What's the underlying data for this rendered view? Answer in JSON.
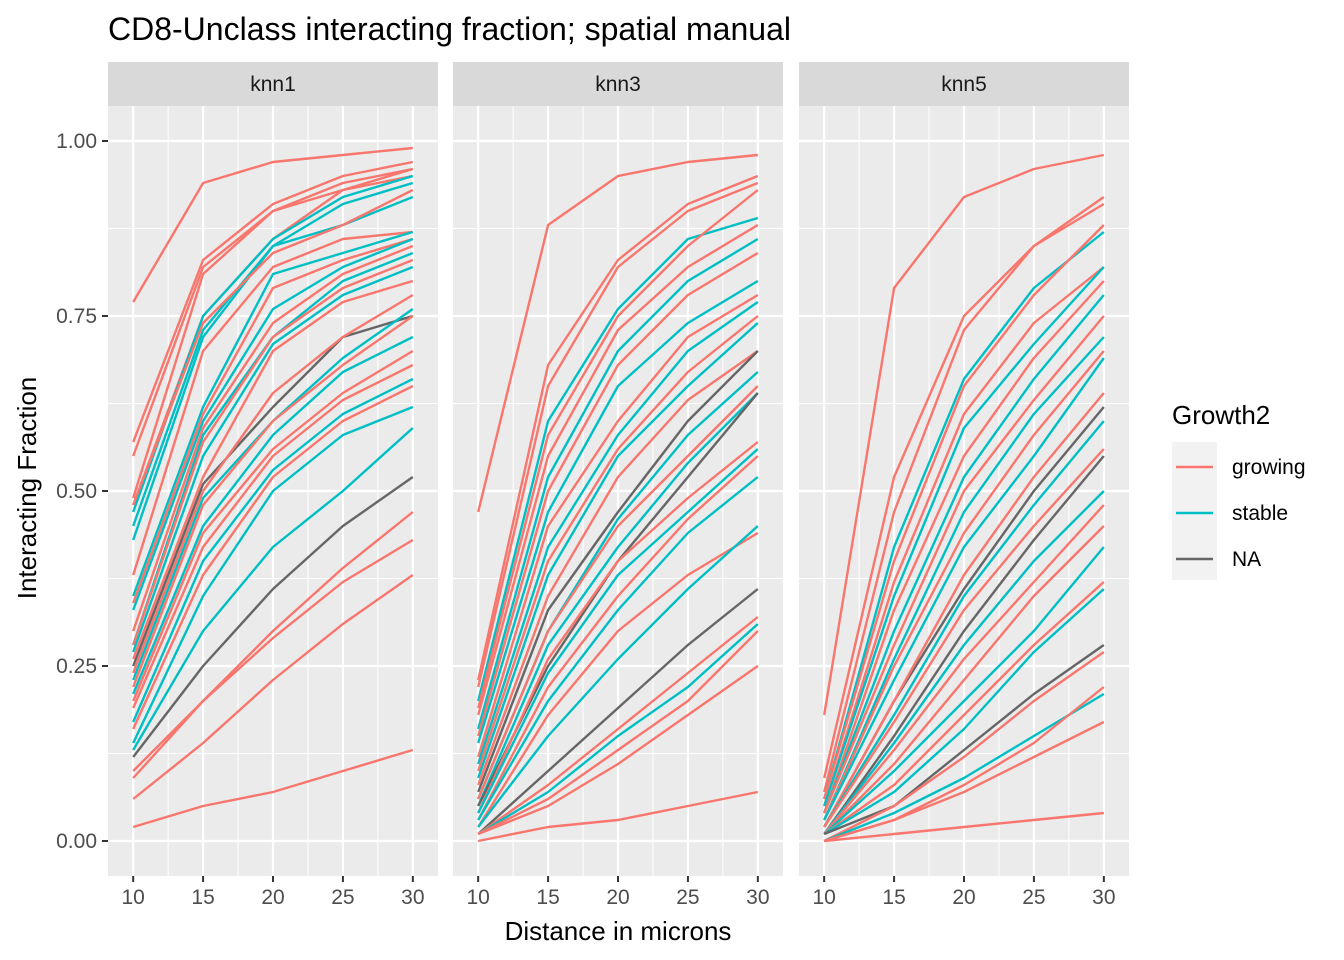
{
  "chart_data": {
    "type": "line",
    "title": "CD8-Unclass interacting fraction; spatial manual",
    "xlabel": "Distance in microns",
    "ylabel": "Interacting Fraction",
    "x": [
      10,
      15,
      20,
      25,
      30
    ],
    "xticks": [
      "10",
      "15",
      "20",
      "25",
      "30"
    ],
    "yticks": [
      "0.00",
      "0.25",
      "0.50",
      "0.75",
      "1.00"
    ],
    "xlim": [
      8.2,
      31.8
    ],
    "ylim": [
      -0.05,
      1.05
    ],
    "grid": true,
    "legend": {
      "title": "Growth2",
      "position": "right",
      "entries": [
        {
          "label": "growing",
          "color": "#F8766D"
        },
        {
          "label": "stable",
          "color": "#00BFC4"
        },
        {
          "label": "NA",
          "color": "#666666"
        }
      ]
    },
    "colors": {
      "growing": "#F8766D",
      "stable": "#00BFC4",
      "NA": "#666666",
      "panel_bg": "#EBEBEB",
      "strip_bg": "#D9D9D9",
      "grid": "#FFFFFF"
    },
    "panels": [
      {
        "label": "knn1",
        "lines": [
          {
            "group": "growing",
            "values": [
              0.77,
              0.94,
              0.97,
              0.98,
              0.99
            ]
          },
          {
            "group": "growing",
            "values": [
              0.57,
              0.83,
              0.91,
              0.95,
              0.97
            ]
          },
          {
            "group": "growing",
            "values": [
              0.55,
              0.82,
              0.9,
              0.94,
              0.96
            ]
          },
          {
            "group": "growing",
            "values": [
              0.49,
              0.81,
              0.9,
              0.93,
              0.96
            ]
          },
          {
            "group": "growing",
            "values": [
              0.48,
              0.75,
              0.86,
              0.93,
              0.95
            ]
          },
          {
            "group": "stable",
            "values": [
              0.47,
              0.75,
              0.86,
              0.92,
              0.95
            ]
          },
          {
            "group": "stable",
            "values": [
              0.45,
              0.73,
              0.85,
              0.91,
              0.94
            ]
          },
          {
            "group": "stable",
            "values": [
              0.43,
              0.72,
              0.85,
              0.88,
              0.92
            ]
          },
          {
            "group": "growing",
            "values": [
              0.48,
              0.74,
              0.84,
              0.88,
              0.93
            ]
          },
          {
            "group": "growing",
            "values": [
              0.38,
              0.7,
              0.82,
              0.86,
              0.87
            ]
          },
          {
            "group": "stable",
            "values": [
              0.35,
              0.62,
              0.81,
              0.84,
              0.87
            ]
          },
          {
            "group": "growing",
            "values": [
              0.34,
              0.61,
              0.79,
              0.83,
              0.86
            ]
          },
          {
            "group": "stable",
            "values": [
              0.33,
              0.6,
              0.76,
              0.82,
              0.86
            ]
          },
          {
            "group": "growing",
            "values": [
              0.3,
              0.59,
              0.74,
              0.81,
              0.85
            ]
          },
          {
            "group": "stable",
            "values": [
              0.28,
              0.58,
              0.72,
              0.8,
              0.84
            ]
          },
          {
            "group": "growing",
            "values": [
              0.28,
              0.57,
              0.72,
              0.79,
              0.83
            ]
          },
          {
            "group": "stable",
            "values": [
              0.27,
              0.55,
              0.71,
              0.78,
              0.82
            ]
          },
          {
            "group": "growing",
            "values": [
              0.26,
              0.52,
              0.7,
              0.77,
              0.8
            ]
          },
          {
            "group": "NA",
            "values": [
              0.25,
              0.51,
              0.62,
              0.72,
              0.75
            ]
          },
          {
            "group": "growing",
            "values": [
              0.24,
              0.5,
              0.64,
              0.72,
              0.78
            ]
          },
          {
            "group": "stable",
            "values": [
              0.23,
              0.49,
              0.6,
              0.69,
              0.76
            ]
          },
          {
            "group": "growing",
            "values": [
              0.22,
              0.48,
              0.6,
              0.68,
              0.75
            ]
          },
          {
            "group": "stable",
            "values": [
              0.21,
              0.45,
              0.58,
              0.67,
              0.72
            ]
          },
          {
            "group": "growing",
            "values": [
              0.2,
              0.44,
              0.56,
              0.64,
              0.7
            ]
          },
          {
            "group": "growing",
            "values": [
              0.19,
              0.42,
              0.55,
              0.63,
              0.68
            ]
          },
          {
            "group": "stable",
            "values": [
              0.17,
              0.4,
              0.53,
              0.61,
              0.66
            ]
          },
          {
            "group": "growing",
            "values": [
              0.16,
              0.38,
              0.52,
              0.6,
              0.65
            ]
          },
          {
            "group": "stable",
            "values": [
              0.14,
              0.35,
              0.5,
              0.58,
              0.62
            ]
          },
          {
            "group": "NA",
            "values": [
              0.12,
              0.25,
              0.36,
              0.45,
              0.52
            ]
          },
          {
            "group": "stable",
            "values": [
              0.13,
              0.3,
              0.42,
              0.5,
              0.59
            ]
          },
          {
            "group": "growing",
            "values": [
              0.1,
              0.2,
              0.3,
              0.39,
              0.47
            ]
          },
          {
            "group": "growing",
            "values": [
              0.09,
              0.2,
              0.29,
              0.37,
              0.43
            ]
          },
          {
            "group": "growing",
            "values": [
              0.06,
              0.14,
              0.23,
              0.31,
              0.38
            ]
          },
          {
            "group": "growing",
            "values": [
              0.02,
              0.05,
              0.07,
              0.1,
              0.13
            ]
          }
        ]
      },
      {
        "label": "knn3",
        "lines": [
          {
            "group": "growing",
            "values": [
              0.47,
              0.88,
              0.95,
              0.97,
              0.98
            ]
          },
          {
            "group": "growing",
            "values": [
              0.23,
              0.68,
              0.83,
              0.91,
              0.95
            ]
          },
          {
            "group": "growing",
            "values": [
              0.22,
              0.65,
              0.82,
              0.9,
              0.94
            ]
          },
          {
            "group": "stable",
            "values": [
              0.2,
              0.6,
              0.76,
              0.86,
              0.89
            ]
          },
          {
            "group": "growing",
            "values": [
              0.19,
              0.58,
              0.75,
              0.85,
              0.93
            ]
          },
          {
            "group": "growing",
            "values": [
              0.18,
              0.55,
              0.73,
              0.82,
              0.88
            ]
          },
          {
            "group": "stable",
            "values": [
              0.16,
              0.52,
              0.7,
              0.8,
              0.86
            ]
          },
          {
            "group": "growing",
            "values": [
              0.15,
              0.5,
              0.68,
              0.78,
              0.84
            ]
          },
          {
            "group": "stable",
            "values": [
              0.14,
              0.47,
              0.65,
              0.74,
              0.8
            ]
          },
          {
            "group": "growing",
            "values": [
              0.12,
              0.45,
              0.6,
              0.72,
              0.78
            ]
          },
          {
            "group": "stable",
            "values": [
              0.11,
              0.42,
              0.58,
              0.7,
              0.77
            ]
          },
          {
            "group": "growing",
            "values": [
              0.1,
              0.4,
              0.56,
              0.67,
              0.75
            ]
          },
          {
            "group": "stable",
            "values": [
              0.09,
              0.38,
              0.55,
              0.65,
              0.74
            ]
          },
          {
            "group": "growing",
            "values": [
              0.08,
              0.35,
              0.52,
              0.63,
              0.7
            ]
          },
          {
            "group": "NA",
            "values": [
              0.07,
              0.33,
              0.47,
              0.6,
              0.7
            ]
          },
          {
            "group": "stable",
            "values": [
              0.06,
              0.3,
              0.46,
              0.58,
              0.67
            ]
          },
          {
            "group": "growing",
            "values": [
              0.06,
              0.3,
              0.45,
              0.55,
              0.65
            ]
          },
          {
            "group": "stable",
            "values": [
              0.05,
              0.28,
              0.42,
              0.54,
              0.64
            ]
          },
          {
            "group": "NA",
            "values": [
              0.05,
              0.25,
              0.4,
              0.52,
              0.64
            ]
          },
          {
            "group": "growing",
            "values": [
              0.04,
              0.26,
              0.4,
              0.49,
              0.57
            ]
          },
          {
            "group": "stable",
            "values": [
              0.04,
              0.24,
              0.38,
              0.47,
              0.56
            ]
          },
          {
            "group": "growing",
            "values": [
              0.03,
              0.22,
              0.35,
              0.46,
              0.55
            ]
          },
          {
            "group": "stable",
            "values": [
              0.03,
              0.2,
              0.33,
              0.44,
              0.52
            ]
          },
          {
            "group": "growing",
            "values": [
              0.02,
              0.18,
              0.3,
              0.38,
              0.44
            ]
          },
          {
            "group": "stable",
            "values": [
              0.02,
              0.15,
              0.26,
              0.36,
              0.45
            ]
          },
          {
            "group": "NA",
            "values": [
              0.01,
              0.1,
              0.19,
              0.28,
              0.36
            ]
          },
          {
            "group": "growing",
            "values": [
              0.01,
              0.08,
              0.16,
              0.24,
              0.32
            ]
          },
          {
            "group": "stable",
            "values": [
              0.01,
              0.07,
              0.15,
              0.22,
              0.31
            ]
          },
          {
            "group": "growing",
            "values": [
              0.01,
              0.06,
              0.13,
              0.2,
              0.3
            ]
          },
          {
            "group": "growing",
            "values": [
              0.01,
              0.05,
              0.11,
              0.18,
              0.25
            ]
          },
          {
            "group": "growing",
            "values": [
              0.0,
              0.02,
              0.03,
              0.05,
              0.07
            ]
          }
        ]
      },
      {
        "label": "knn5",
        "lines": [
          {
            "group": "growing",
            "values": [
              0.18,
              0.79,
              0.92,
              0.96,
              0.98
            ]
          },
          {
            "group": "growing",
            "values": [
              0.09,
              0.52,
              0.75,
              0.85,
              0.92
            ]
          },
          {
            "group": "growing",
            "values": [
              0.07,
              0.47,
              0.73,
              0.85,
              0.91
            ]
          },
          {
            "group": "stable",
            "values": [
              0.06,
              0.42,
              0.66,
              0.79,
              0.87
            ]
          },
          {
            "group": "growing",
            "values": [
              0.06,
              0.4,
              0.65,
              0.78,
              0.88
            ]
          },
          {
            "group": "growing",
            "values": [
              0.05,
              0.37,
              0.61,
              0.74,
              0.82
            ]
          },
          {
            "group": "stable",
            "values": [
              0.05,
              0.35,
              0.59,
              0.71,
              0.82
            ]
          },
          {
            "group": "growing",
            "values": [
              0.04,
              0.33,
              0.55,
              0.69,
              0.8
            ]
          },
          {
            "group": "stable",
            "values": [
              0.04,
              0.3,
              0.52,
              0.66,
              0.78
            ]
          },
          {
            "group": "growing",
            "values": [
              0.04,
              0.28,
              0.5,
              0.63,
              0.75
            ]
          },
          {
            "group": "stable",
            "values": [
              0.03,
              0.26,
              0.47,
              0.61,
              0.72
            ]
          },
          {
            "group": "growing",
            "values": [
              0.03,
              0.25,
              0.44,
              0.58,
              0.7
            ]
          },
          {
            "group": "stable",
            "values": [
              0.03,
              0.23,
              0.42,
              0.55,
              0.69
            ]
          },
          {
            "group": "NA",
            "values": [
              0.02,
              0.2,
              0.36,
              0.5,
              0.62
            ]
          },
          {
            "group": "growing",
            "values": [
              0.02,
              0.2,
              0.38,
              0.52,
              0.64
            ]
          },
          {
            "group": "stable",
            "values": [
              0.02,
              0.18,
              0.35,
              0.48,
              0.6
            ]
          },
          {
            "group": "growing",
            "values": [
              0.02,
              0.17,
              0.33,
              0.45,
              0.56
            ]
          },
          {
            "group": "NA",
            "values": [
              0.01,
              0.15,
              0.3,
              0.43,
              0.55
            ]
          },
          {
            "group": "stable",
            "values": [
              0.01,
              0.14,
              0.28,
              0.4,
              0.5
            ]
          },
          {
            "group": "growing",
            "values": [
              0.01,
              0.13,
              0.26,
              0.37,
              0.48
            ]
          },
          {
            "group": "growing",
            "values": [
              0.01,
              0.11,
              0.23,
              0.35,
              0.45
            ]
          },
          {
            "group": "stable",
            "values": [
              0.01,
              0.1,
              0.2,
              0.3,
              0.42
            ]
          },
          {
            "group": "growing",
            "values": [
              0.01,
              0.08,
              0.18,
              0.28,
              0.37
            ]
          },
          {
            "group": "stable",
            "values": [
              0.01,
              0.07,
              0.16,
              0.27,
              0.36
            ]
          },
          {
            "group": "NA",
            "values": [
              0.01,
              0.05,
              0.13,
              0.21,
              0.28
            ]
          },
          {
            "group": "growing",
            "values": [
              0.0,
              0.05,
              0.12,
              0.2,
              0.27
            ]
          },
          {
            "group": "stable",
            "values": [
              0.0,
              0.04,
              0.09,
              0.15,
              0.21
            ]
          },
          {
            "group": "growing",
            "values": [
              0.0,
              0.03,
              0.08,
              0.14,
              0.22
            ]
          },
          {
            "group": "growing",
            "values": [
              0.0,
              0.03,
              0.07,
              0.12,
              0.17
            ]
          },
          {
            "group": "growing",
            "values": [
              0.0,
              0.01,
              0.02,
              0.03,
              0.04
            ]
          }
        ]
      }
    ]
  }
}
